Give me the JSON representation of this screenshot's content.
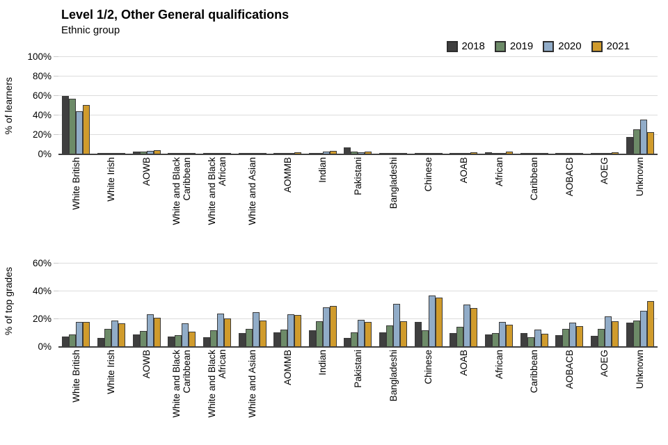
{
  "title": "Level 1/2, Other General qualifications",
  "subtitle": "Ethnic group",
  "colors": {
    "year_2018": "#3f3f3f",
    "year_2019": "#6d8b68",
    "year_2020": "#91acc8",
    "year_2021": "#d09b2c",
    "bar_border": "#3a3a3a",
    "gridline": "#dcdcdc",
    "axis": "#3f3f3f"
  },
  "legend": {
    "position": "top-right",
    "items": [
      "2018",
      "2019",
      "2020",
      "2021"
    ]
  },
  "chart_data": [
    {
      "type": "bar",
      "title": "",
      "ylabel": "% of learners",
      "ylim": [
        0,
        100
      ],
      "yticks": [
        0,
        20,
        40,
        60,
        80,
        100
      ],
      "ytick_suffix": "%",
      "grid": true,
      "categories": [
        "White British",
        "White Irish",
        "AOWB",
        "White and Black\nCaribbean",
        "White and Black\nAfrican",
        "White and Asian",
        "AOMMB",
        "Indian",
        "Pakistani",
        "Bangladeshi",
        "Chinese",
        "AOAB",
        "African",
        "Caribbean",
        "AOBACB",
        "AOEG",
        "Unknown"
      ],
      "series": [
        {
          "name": "2018",
          "color": "#3f3f3f",
          "values": [
            60,
            0.3,
            3,
            0.6,
            0.4,
            0.5,
            0.8,
            1.2,
            7,
            0.7,
            0.3,
            0.8,
            2,
            0.6,
            0.4,
            0.8,
            18
          ]
        },
        {
          "name": "2019",
          "color": "#6d8b68",
          "values": [
            57,
            0.3,
            3,
            0.6,
            0.4,
            0.5,
            0.8,
            1.4,
            3,
            0.6,
            0.3,
            0.8,
            1.5,
            0.5,
            0.4,
            0.8,
            26
          ]
        },
        {
          "name": "2020",
          "color": "#91acc8",
          "values": [
            44,
            0.3,
            3.5,
            0.7,
            0.5,
            0.6,
            1.5,
            3,
            2,
            0.6,
            0.4,
            1.7,
            1.7,
            0.5,
            0.5,
            1.2,
            36
          ]
        },
        {
          "name": "2021",
          "color": "#d09b2c",
          "values": [
            51,
            0.4,
            4.5,
            0.8,
            0.6,
            0.8,
            2,
            3.5,
            3,
            0.8,
            0.5,
            2.2,
            3,
            0.7,
            0.6,
            1.8,
            23
          ]
        }
      ]
    },
    {
      "type": "bar",
      "title": "",
      "ylabel": "% of top grades",
      "ylim": [
        0,
        60
      ],
      "yticks": [
        0,
        20,
        40,
        60
      ],
      "ytick_suffix": "%",
      "grid": true,
      "categories": [
        "White British",
        "White Irish",
        "AOWB",
        "White and Black\nCaribbean",
        "White and Black\nAfrican",
        "White and Asian",
        "AOMMB",
        "Indian",
        "Pakistani",
        "Bangladeshi",
        "Chinese",
        "AOAB",
        "African",
        "Caribbean",
        "AOBACB",
        "AOEG",
        "Unknown"
      ],
      "series": [
        {
          "name": "2018",
          "color": "#3f3f3f",
          "values": [
            7.5,
            6.5,
            9,
            7.5,
            7,
            10,
            10.5,
            12,
            6.5,
            10.5,
            18,
            10,
            9,
            10,
            8.5,
            8,
            17.5
          ]
        },
        {
          "name": "2019",
          "color": "#6d8b68",
          "values": [
            9,
            13,
            11.5,
            8.5,
            12,
            13,
            12.5,
            18.5,
            10.5,
            15.5,
            12,
            14.5,
            10,
            7,
            13,
            13,
            19
          ]
        },
        {
          "name": "2020",
          "color": "#91acc8",
          "values": [
            18,
            19,
            23.5,
            17,
            24,
            25,
            23.5,
            28.5,
            19.5,
            31,
            37,
            30.5,
            18,
            12.5,
            17.5,
            22,
            26
          ]
        },
        {
          "name": "2021",
          "color": "#d09b2c",
          "values": [
            18,
            17,
            21,
            11,
            20.5,
            19,
            23,
            29.5,
            18,
            18.5,
            35.5,
            28,
            16,
            9.5,
            15,
            18.5,
            33
          ]
        }
      ]
    }
  ]
}
